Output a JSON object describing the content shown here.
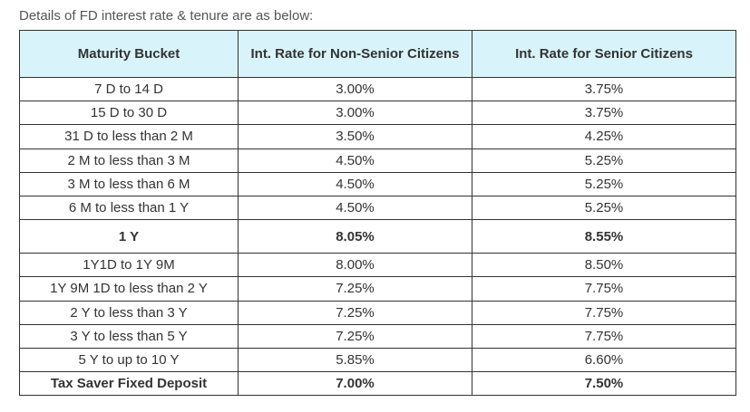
{
  "caption": "Details of FD interest rate & tenure are as below:",
  "table": {
    "headers": [
      "Maturity Bucket",
      "Int. Rate for Non-Senior Citizens",
      "Int. Rate for Senior Citizens"
    ],
    "rows": [
      {
        "bucket": "7 D to 14 D",
        "non_senior": "3.00%",
        "senior": "3.75%"
      },
      {
        "bucket": "15 D to 30 D",
        "non_senior": "3.00%",
        "senior": "3.75%"
      },
      {
        "bucket": "31 D to less than 2 M",
        "non_senior": "3.50%",
        "senior": "4.25%"
      },
      {
        "bucket": "2 M to less than 3 M",
        "non_senior": "4.50%",
        "senior": "5.25%"
      },
      {
        "bucket": "3 M to less than 6 M",
        "non_senior": "4.50%",
        "senior": "5.25%"
      },
      {
        "bucket": "6 M to less than 1 Y",
        "non_senior": "4.50%",
        "senior": "5.25%"
      },
      {
        "bucket": "1 Y",
        "non_senior": "8.05%",
        "senior": "8.55%"
      },
      {
        "bucket": "1Y1D to 1Y 9M",
        "non_senior": "8.00%",
        "senior": "8.50%"
      },
      {
        "bucket": "1Y 9M 1D to less than 2 Y",
        "non_senior": "7.25%",
        "senior": "7.75%"
      },
      {
        "bucket": "2 Y to less than 3 Y",
        "non_senior": "7.25%",
        "senior": "7.75%"
      },
      {
        "bucket": "3 Y to less than 5 Y",
        "non_senior": "7.25%",
        "senior": "7.75%"
      },
      {
        "bucket": "5 Y to up to 10 Y",
        "non_senior": "5.85%",
        "senior": "6.60%"
      },
      {
        "bucket": "Tax Saver Fixed Deposit",
        "non_senior": "7.00%",
        "senior": "7.50%"
      }
    ]
  },
  "colors": {
    "header_bg": "#d8f4fa",
    "border": "#333333"
  }
}
